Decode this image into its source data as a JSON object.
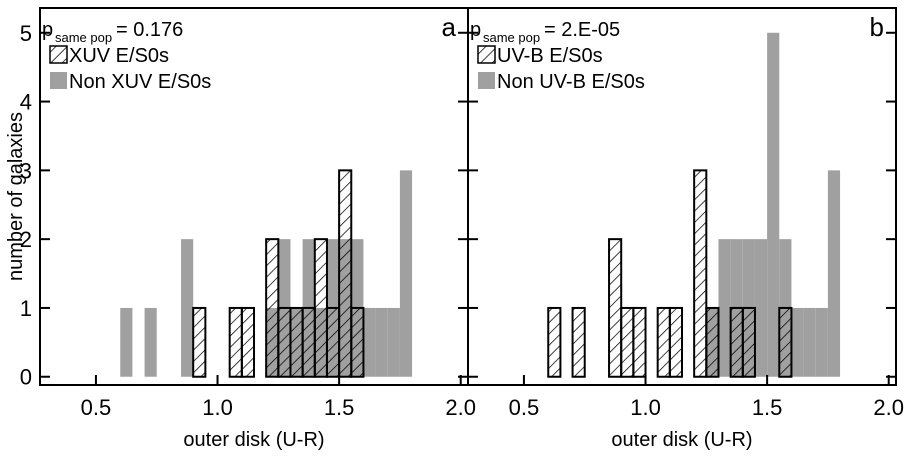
{
  "chart_data": [
    {
      "type": "histogram",
      "panel_label": "a",
      "annotation": {
        "p": "p",
        "subscript": "same pop",
        "text": "=  0.176"
      },
      "x_label": "outer disk (U-R)",
      "y_label": "number of galaxies",
      "bins": [
        0.6,
        0.65,
        0.7,
        0.75,
        0.8,
        0.85,
        0.9,
        0.95,
        1.0,
        1.05,
        1.1,
        1.15,
        1.2,
        1.25,
        1.3,
        1.35,
        1.4,
        1.45,
        1.5,
        1.55,
        1.6,
        1.65,
        1.7,
        1.75,
        1.8
      ],
      "series": [
        {
          "name": "Non XUV E/S0s",
          "color": "#a0a0a0",
          "style": "solid",
          "values": [
            1,
            0,
            1,
            0,
            0,
            2,
            0,
            0,
            0,
            0,
            0,
            0,
            1,
            2,
            1,
            2,
            1,
            2,
            2,
            2,
            1,
            1,
            1,
            3
          ]
        },
        {
          "name": "XUV E/S0s",
          "color": "#000000",
          "style": "hatched",
          "values": [
            0,
            0,
            0,
            0,
            0,
            0,
            1,
            0,
            0,
            1,
            1,
            0,
            2,
            1,
            1,
            1,
            2,
            1,
            3,
            1,
            0,
            0,
            0,
            0
          ]
        }
      ],
      "xlim": [
        0.27,
        2.03
      ],
      "ylim": [
        -0.12,
        5.36
      ],
      "xticks": [
        0.5,
        {
          "value": 1,
          "label": "1.0"
        },
        1.5,
        {
          "value": 2,
          "label": "2.0"
        }
      ],
      "yticks": [
        0,
        1,
        2,
        3,
        4,
        5
      ]
    },
    {
      "type": "histogram",
      "panel_label": "b",
      "annotation": {
        "p": "p",
        "subscript": "same pop",
        "text": "= 2.E-05"
      },
      "x_label": "outer disk (U-R)",
      "bins": [
        0.6,
        0.65,
        0.7,
        0.75,
        0.8,
        0.85,
        0.9,
        0.95,
        1.0,
        1.05,
        1.1,
        1.15,
        1.2,
        1.25,
        1.3,
        1.35,
        1.4,
        1.45,
        1.5,
        1.55,
        1.6,
        1.65,
        1.7,
        1.75,
        1.8
      ],
      "series": [
        {
          "name": "Non UV-B E/S0s",
          "color": "#a0a0a0",
          "style": "solid",
          "values": [
            0,
            0,
            0,
            0,
            0,
            0,
            0,
            0,
            0,
            0,
            0,
            0,
            0,
            1,
            2,
            2,
            2,
            2,
            5,
            2,
            1,
            1,
            1,
            3
          ]
        },
        {
          "name": "UV-B E/S0s",
          "color": "#000000",
          "style": "hatched",
          "values": [
            1,
            0,
            1,
            0,
            0,
            2,
            1,
            1,
            0,
            1,
            1,
            0,
            3,
            1,
            0,
            1,
            1,
            0,
            0,
            1,
            0,
            0,
            0,
            0
          ]
        }
      ],
      "xlim": [
        0.27,
        2.03
      ],
      "ylim": [
        -0.12,
        5.36
      ],
      "xticks": [
        0.5,
        {
          "value": 1,
          "label": "1.0"
        },
        1.5,
        {
          "value": 2,
          "label": "2.0"
        }
      ],
      "yticks": [
        0,
        1,
        2,
        3,
        4,
        5
      ]
    }
  ]
}
